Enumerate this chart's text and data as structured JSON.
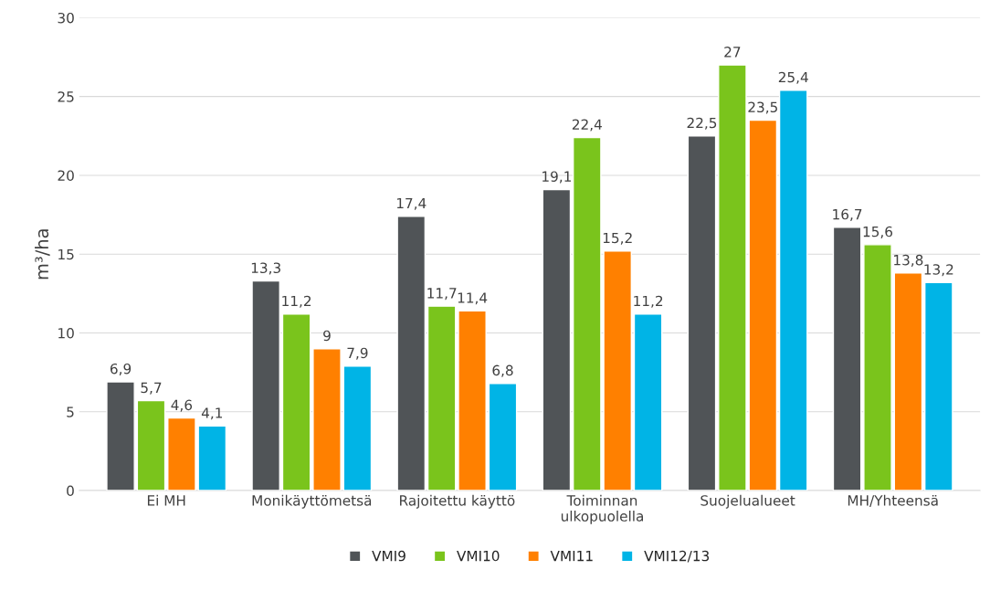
{
  "chart_data": {
    "type": "bar",
    "ylabel": "m³/ha",
    "categories": [
      "Ei MH",
      "Monikäyttömetsä",
      "Rajoitettu käyttö",
      "Toiminnan\nulkopuolella",
      "Suojelualueet",
      "MH/Yhteensä"
    ],
    "series": [
      {
        "name": "VMI9",
        "color": "#505457",
        "values": [
          6.9,
          13.3,
          17.4,
          19.1,
          22.5,
          16.7
        ],
        "value_labels": [
          "6,9",
          "13,3",
          "17,4",
          "19,1",
          "22,5",
          "16,7"
        ]
      },
      {
        "name": "VMI10",
        "color": "#7ac41c",
        "values": [
          5.7,
          11.2,
          11.7,
          22.4,
          27,
          15.6
        ],
        "value_labels": [
          "5,7",
          "11,2",
          "11,7",
          "22,4",
          "27",
          "15,6"
        ]
      },
      {
        "name": "VMI11",
        "color": "#ff8000",
        "values": [
          4.6,
          9,
          11.4,
          15.2,
          23.5,
          13.8
        ],
        "value_labels": [
          "4,6",
          "9",
          "11,4",
          "15,2",
          "23,5",
          "13,8"
        ]
      },
      {
        "name": "VMI12/13",
        "color": "#00b4e6",
        "values": [
          4.1,
          7.9,
          6.8,
          11.2,
          25.4,
          13.2
        ],
        "value_labels": [
          "4,1",
          "7,9",
          "6,8",
          "11,2",
          "25,4",
          "13,2"
        ]
      }
    ],
    "ylim": [
      0,
      30
    ],
    "yticks": [
      0,
      5,
      10,
      15,
      20,
      25,
      30
    ],
    "grid": "y",
    "legend": "bottom"
  }
}
